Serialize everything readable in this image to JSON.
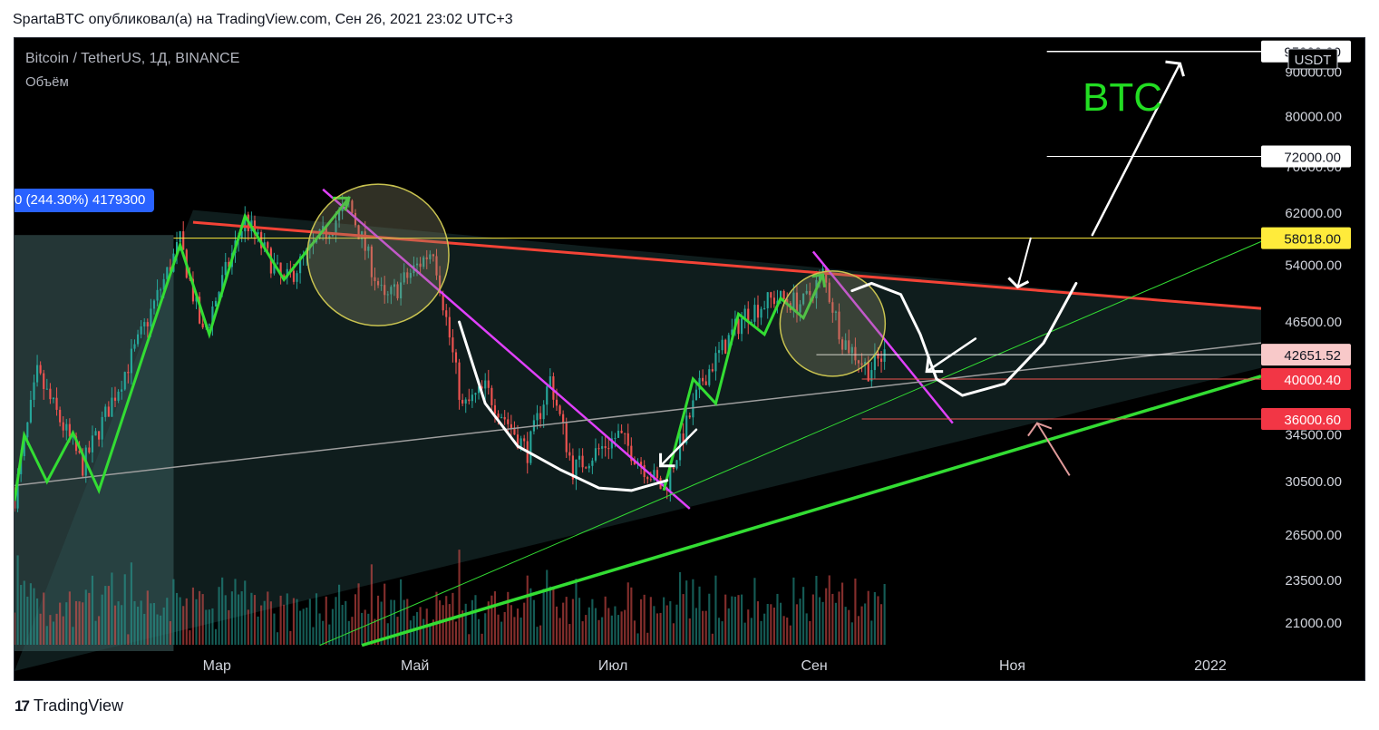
{
  "header": {
    "caption": "SpartaBTC опубликовал(а) на TradingView.com, Сен 26, 2021 23:02 UTC+3"
  },
  "legend": {
    "symbol": "Bitcoin / TetherUS, 1Д, BINANCE",
    "volume_label": "Объём"
  },
  "measure_badge": {
    "text": "0 (244.30%) 4179300"
  },
  "annotations": {
    "ticker_text": "BTC"
  },
  "footer": {
    "brand": "TradingView"
  },
  "colors": {
    "background": "#000000",
    "up_candle": "#26a69a",
    "down_candle": "#ef5350",
    "zigzag": "#33dd33",
    "resistance": "#f44336",
    "downtrend": "#e040fb",
    "support_main": "#33dd33",
    "support_grey": "#9e9e9e",
    "horizontal_yellow": "#ffeb3b",
    "text_green": "#22dd22"
  },
  "chart_data": {
    "type": "candlestick",
    "title": "Bitcoin / TetherUS, 1Д, BINANCE",
    "x_axis": {
      "type": "date",
      "range": [
        "2021-01-01",
        "2022-01-20"
      ],
      "tick_labels": [
        "Мар",
        "Май",
        "Июл",
        "Сен",
        "Ноя",
        "2022"
      ]
    },
    "y_axis": {
      "unit": "USDT",
      "scale": "log",
      "range": [
        19500,
        97000
      ],
      "tick_labels": [
        "21000.00",
        "23500.00",
        "26500.00",
        "30500.00",
        "34500.00",
        "40000.00",
        "46500.00",
        "54000.00",
        "62000.00",
        "70000.00",
        "80000.00",
        "90000.00"
      ]
    },
    "price_labels": [
      {
        "value": "95000.00",
        "color": "#ffffff",
        "text_color": "#131722"
      },
      {
        "value": "72000.00",
        "color": "#ffffff",
        "text_color": "#131722"
      },
      {
        "value": "58018.00",
        "color": "#ffeb3b",
        "text_color": "#131722"
      },
      {
        "value": "42651.52",
        "color": "#f8c9c9",
        "text_color": "#131722"
      },
      {
        "value": "40000.40",
        "color": "#f23645",
        "text_color": "#ffffff"
      },
      {
        "value": "36000.60",
        "color": "#f23645",
        "text_color": "#ffffff"
      }
    ],
    "currency_badge": "USDT",
    "close_path": [
      [
        "2021-01-01",
        29300
      ],
      [
        "2021-01-08",
        40500
      ],
      [
        "2021-01-22",
        31800
      ],
      [
        "2021-02-08",
        44000
      ],
      [
        "2021-02-21",
        57500
      ],
      [
        "2021-02-28",
        45000
      ],
      [
        "2021-03-13",
        61000
      ],
      [
        "2021-03-25",
        51500
      ],
      [
        "2021-04-14",
        63500
      ],
      [
        "2021-04-25",
        49000
      ],
      [
        "2021-05-10",
        56500
      ],
      [
        "2021-05-19",
        37000
      ],
      [
        "2021-05-26",
        39000
      ],
      [
        "2021-06-08",
        33000
      ],
      [
        "2021-06-15",
        40000
      ],
      [
        "2021-06-22",
        31500
      ],
      [
        "2021-07-06",
        34500
      ],
      [
        "2021-07-20",
        29800
      ],
      [
        "2021-08-01",
        40000
      ],
      [
        "2021-08-14",
        47500
      ],
      [
        "2021-08-23",
        49500
      ],
      [
        "2021-09-01",
        48800
      ],
      [
        "2021-09-07",
        52800
      ],
      [
        "2021-09-13",
        44500
      ],
      [
        "2021-09-21",
        41000
      ],
      [
        "2021-09-26",
        42651.52
      ]
    ],
    "zigzag": [
      [
        "2021-01-01",
        29000
      ],
      [
        "2021-01-04",
        34500
      ],
      [
        "2021-01-11",
        30500
      ],
      [
        "2021-01-19",
        34700
      ],
      [
        "2021-01-27",
        29800
      ],
      [
        "2021-02-10",
        43000
      ],
      [
        "2021-02-21",
        57000
      ],
      [
        "2021-03-02",
        45000
      ],
      [
        "2021-03-13",
        61500
      ],
      [
        "2021-03-25",
        52000
      ],
      [
        "2021-04-14",
        64500
      ]
    ],
    "zigzag_sep": [
      [
        "2021-07-20",
        29800
      ],
      [
        "2021-07-29",
        40000
      ],
      [
        "2021-08-05",
        37500
      ],
      [
        "2021-08-12",
        47500
      ],
      [
        "2021-08-20",
        45000
      ],
      [
        "2021-08-25",
        49500
      ],
      [
        "2021-09-01",
        47000
      ],
      [
        "2021-09-07",
        52700
      ]
    ],
    "lines": [
      {
        "name": "resistance",
        "from": [
          "2021-02-25",
          60500
        ],
        "to": [
          "2022-01-20",
          48200
        ]
      },
      {
        "name": "downtrend_1",
        "from": [
          "2021-04-06",
          66000
        ],
        "to": [
          "2021-07-28",
          28400
        ]
      },
      {
        "name": "downtrend_2",
        "from": [
          "2021-09-04",
          56000
        ],
        "to": [
          "2021-10-17",
          35600
        ]
      },
      {
        "name": "support_main",
        "from": [
          "2021-04-18",
          19800
        ],
        "to": [
          "2022-01-20",
          40300
        ]
      },
      {
        "name": "support_grey",
        "from": [
          "2021-01-01",
          30200
        ],
        "to": [
          "2022-01-20",
          44000
        ]
      },
      {
        "name": "support_thin",
        "from": [
          "2021-04-05",
          19800
        ],
        "to": [
          "2022-01-20",
          57500
        ]
      },
      {
        "name": "level_58018",
        "from": [
          "2021-02-19",
          58018
        ],
        "to": [
          "2022-01-20",
          58018
        ]
      },
      {
        "name": "level_42651",
        "from": [
          "2021-09-05",
          42651.52
        ],
        "to": [
          "2022-01-20",
          42651.52
        ]
      },
      {
        "name": "level_40000",
        "from": [
          "2021-09-19",
          40000.4
        ],
        "to": [
          "2022-01-20",
          40000.4
        ]
      },
      {
        "name": "level_36000",
        "from": [
          "2021-09-19",
          36000.6
        ],
        "to": [
          "2022-01-20",
          36000.6
        ]
      },
      {
        "name": "level_72000",
        "from": [
          "2021-11-15",
          72000
        ],
        "to": [
          "2022-01-20",
          72000
        ]
      },
      {
        "name": "level_95000",
        "from": [
          "2021-11-15",
          95000
        ],
        "to": [
          "2022-01-20",
          95000
        ]
      }
    ],
    "circles": [
      {
        "center": [
          "2021-04-23",
          55500
        ]
      },
      {
        "center": [
          "2021-09-10",
          46300
        ]
      }
    ],
    "triangle": [
      [
        "2021-02-25",
        62500
      ],
      [
        "2022-01-20",
        48200
      ],
      [
        "2022-01-20",
        41200
      ],
      [
        "2021-01-01",
        18500
      ]
    ]
  }
}
